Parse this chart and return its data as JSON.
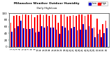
{
  "title": "Milwaukee Weather Outdoor Humidity",
  "subtitle": "Daily High/Low",
  "high_color": "#ff0000",
  "low_color": "#0000cc",
  "bg_color": "#ffffff",
  "legend_high": "High",
  "legend_low": "Low",
  "highs": [
    72,
    93,
    95,
    93,
    97,
    97,
    95,
    97,
    88,
    94,
    97,
    95,
    97,
    93,
    96,
    95,
    71,
    97,
    96,
    90,
    93,
    95,
    92,
    96,
    97,
    93,
    97,
    96,
    57,
    84,
    52,
    68,
    78
  ],
  "lows": [
    45,
    55,
    62,
    78,
    56,
    53,
    53,
    56,
    42,
    45,
    62,
    57,
    62,
    58,
    58,
    52,
    38,
    62,
    57,
    48,
    55,
    60,
    49,
    52,
    68,
    52,
    62,
    55,
    28,
    38,
    28,
    40,
    55
  ],
  "xlabels": [
    "1",
    "2",
    "3",
    "4",
    "5",
    "6",
    "7",
    "8",
    "9",
    "10",
    "11",
    "12",
    "13",
    "14",
    "15",
    "16",
    "17",
    "18",
    "19",
    "20",
    "21",
    "22",
    "23",
    "24",
    "25",
    "26",
    "27",
    "28",
    "29",
    "30",
    "31",
    "32",
    "33"
  ],
  "ylim": [
    0,
    100
  ],
  "yticks": [
    0,
    20,
    40,
    60,
    80,
    100
  ]
}
